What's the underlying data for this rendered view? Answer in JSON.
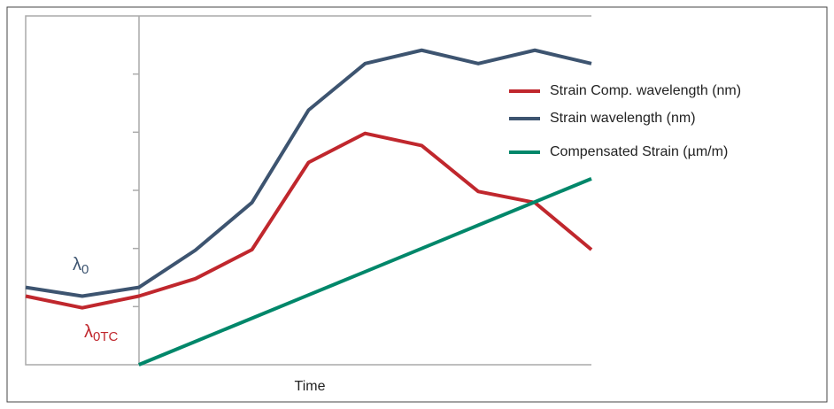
{
  "chart_data": {
    "type": "line",
    "x_label": "Time",
    "categories": [
      null,
      null,
      null,
      null,
      null,
      null,
      null,
      null,
      null,
      null,
      null
    ],
    "ylim": [
      0,
      6
    ],
    "yticks": [
      1,
      2,
      3,
      4,
      5
    ],
    "series": [
      {
        "name": "Strain Comp. wavelength (nm)",
        "color": "#c0272d",
        "values": [
          1.18,
          0.98,
          1.18,
          1.48,
          1.98,
          3.48,
          3.98,
          3.77,
          2.98,
          2.79,
          1.98
        ]
      },
      {
        "name": "Strain wavelength (nm)",
        "color": "#3d5470",
        "values": [
          1.33,
          1.18,
          1.33,
          1.97,
          2.79,
          4.38,
          5.18,
          5.41,
          5.18,
          5.41,
          5.18
        ]
      },
      {
        "name": "Compensated Strain (µm/m)",
        "color": "#00876a",
        "values": [
          null,
          null,
          0,
          0.4,
          0.8,
          1.2,
          1.6,
          2.0,
          2.4,
          2.8,
          3.2
        ]
      }
    ],
    "annotations": [
      {
        "text": "λ",
        "sub": "0",
        "color": "#3d5470"
      },
      {
        "text": "λ",
        "sub": "0TC",
        "color": "#c0272d"
      }
    ]
  }
}
